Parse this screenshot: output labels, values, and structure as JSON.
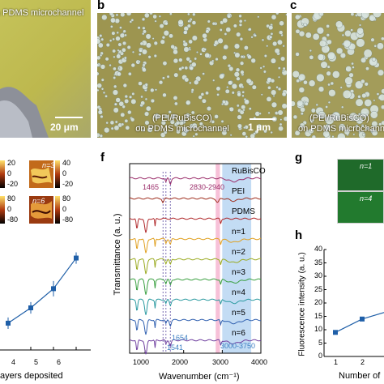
{
  "panels": {
    "b": "b",
    "c": "c",
    "f": "f",
    "g": "g",
    "h": "h"
  },
  "panel_a": {
    "caption": "a PDMS microchannel",
    "scalebar": "20 μm"
  },
  "panel_b": {
    "caption_line1": "(PEI/RuBisCO)",
    "caption_line2": "on PDMS microchannel",
    "scalebar": "1 μm"
  },
  "panel_c": {
    "caption_line1": "(PEI/RuBisCO)",
    "caption_line2": "on PDMS microchannel"
  },
  "panel_e": {
    "afm": [
      {
        "n": "n=3",
        "ticks": [
          "20",
          "0",
          "-20"
        ],
        "ticks_right": [
          "40",
          "0",
          "-20"
        ]
      },
      {
        "n": "n=6",
        "ticks": [
          "80",
          "0",
          "-80"
        ],
        "ticks_right": [
          "80",
          "0",
          "-80"
        ]
      }
    ],
    "xlabel": "ayers deposited",
    "x_ticks": [
      "4",
      "5",
      "6"
    ]
  },
  "panel_f": {
    "ylabel": "Transmittance (a. u.)",
    "xlabel": "Wavenumber (cm⁻¹)",
    "x_ticks": [
      "1000",
      "2000",
      "3000",
      "4000"
    ],
    "annotations": {
      "a1465": "1465",
      "a2830": "2830-2940",
      "a1654": "1654",
      "a1541": "1541",
      "a3000": "3000-3750"
    }
  },
  "panel_g": {
    "tiles": [
      "n=1",
      "n=4"
    ]
  },
  "panel_h": {
    "ylabel": "Fluorescence intensity (a. u.)",
    "xlabel": "Number of",
    "y_ticks": [
      "0",
      "5",
      "10",
      "15",
      "20",
      "25",
      "30",
      "35",
      "40"
    ],
    "x_ticks": [
      "1",
      "2"
    ]
  },
  "chart_data": [
    {
      "type": "line",
      "panel": "e",
      "xlabel": "ayers deposited",
      "x": [
        3,
        4,
        5,
        6
      ],
      "series": [
        {
          "values": [
            14,
            22,
            32,
            48
          ],
          "errors": [
            3,
            3,
            4,
            3
          ]
        }
      ]
    },
    {
      "type": "line",
      "panel": "f",
      "xlabel": "Wavenumber (cm⁻¹)",
      "ylabel": "Transmittance (a. u.)",
      "xlim": [
        600,
        4000
      ],
      "series": [
        {
          "name": "RuBisCO",
          "color": "#9b2d6a"
        },
        {
          "name": "PEI",
          "color": "#a03020"
        },
        {
          "name": "PDMS",
          "color": "#b0282a"
        },
        {
          "name": "n=1",
          "color": "#e0a020"
        },
        {
          "name": "n=2",
          "color": "#9aaa20"
        },
        {
          "name": "n=3",
          "color": "#3aa040"
        },
        {
          "name": "n=4",
          "color": "#2a9aa0"
        },
        {
          "name": "n=5",
          "color": "#3060b0"
        },
        {
          "name": "n=6",
          "color": "#7040a0"
        }
      ],
      "highlight_bands": [
        {
          "range": [
            2830,
            2940
          ],
          "color": "#f4a6c8"
        },
        {
          "range": [
            3000,
            3750
          ],
          "color": "#a9cdef"
        }
      ],
      "dashed_lines": [
        1465,
        1541,
        1654
      ]
    },
    {
      "type": "line",
      "panel": "h",
      "xlabel": "Number of",
      "ylabel": "Fluorescence intensity (a. u.)",
      "ylim": [
        0,
        40
      ],
      "x": [
        1,
        2,
        3
      ],
      "series": [
        {
          "values": [
            9,
            14,
            17
          ],
          "color": "#1f5fa8"
        }
      ]
    }
  ]
}
